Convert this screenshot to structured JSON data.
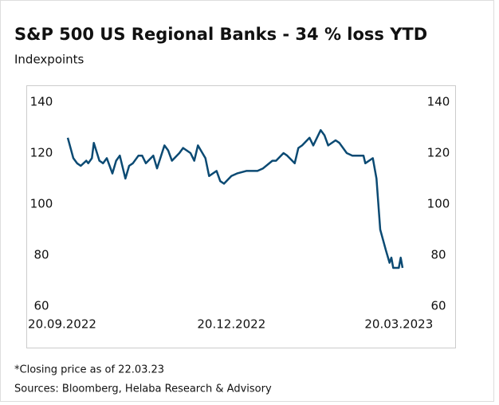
{
  "chart_data": {
    "type": "line",
    "title": "S&P 500 US Regional Banks - 34 % loss YTD",
    "subtitle": "Indexpoints",
    "notes": [
      "*Closing price as of 22.03.23",
      "Sources: Bloomberg, Helaba Research & Advisory"
    ],
    "x": [
      "23.09.2022",
      "26.09.2022",
      "28.09.2022",
      "30.09.2022",
      "03.10.2022",
      "04.10.2022",
      "06.10.2022",
      "07.10.2022",
      "10.10.2022",
      "12.10.2022",
      "14.10.2022",
      "17.10.2022",
      "19.10.2022",
      "21.10.2022",
      "24.10.2022",
      "26.10.2022",
      "28.10.2022",
      "31.10.2022",
      "02.11.2022",
      "04.11.2022",
      "08.11.2022",
      "10.11.2022",
      "14.11.2022",
      "16.11.2022",
      "18.11.2022",
      "22.11.2022",
      "24.11.2022",
      "28.11.2022",
      "30.11.2022",
      "02.12.2022",
      "06.12.2022",
      "08.12.2022",
      "12.12.2022",
      "14.12.2022",
      "16.12.2022",
      "20.12.2022",
      "23.12.2022",
      "28.12.2022",
      "03.01.2023",
      "06.01.2023",
      "11.01.2023",
      "13.01.2023",
      "17.01.2023",
      "19.01.2023",
      "23.01.2023",
      "25.01.2023",
      "27.01.2023",
      "31.01.2023",
      "02.02.2023",
      "06.02.2023",
      "08.02.2023",
      "10.02.2023",
      "14.02.2023",
      "16.02.2023",
      "20.02.2023",
      "23.02.2023",
      "27.02.2023",
      "01.03.2023",
      "02.03.2023",
      "06.03.2023",
      "08.03.2023",
      "10.03.2023",
      "13.03.2023",
      "15.03.2023",
      "16.03.2023",
      "17.03.2023",
      "20.03.2023",
      "21.03.2023",
      "22.03.2023"
    ],
    "values": [
      126,
      118,
      116,
      115,
      117,
      116,
      118,
      124,
      117,
      116,
      118,
      112,
      117,
      119,
      110,
      115,
      116,
      119,
      119,
      116,
      119,
      114,
      123,
      121,
      117,
      120,
      122,
      120,
      117,
      123,
      118,
      111,
      113,
      109,
      108,
      111,
      112,
      113,
      113,
      114,
      117,
      117,
      120,
      119,
      116,
      122,
      123,
      126,
      123,
      129,
      127,
      123,
      125,
      124,
      120,
      119,
      119,
      119,
      116,
      118,
      110,
      90,
      82,
      77,
      79,
      75,
      75,
      79,
      75
    ],
    "color": "#0b4a73",
    "xlim": [
      "20.09.2022",
      "22.03.2023"
    ],
    "xticks": [
      "20.09.2022",
      "20.12.2022",
      "20.03.2023"
    ],
    "ylim": [
      60,
      140
    ],
    "yticks": [
      60,
      80,
      100,
      120,
      140
    ]
  }
}
